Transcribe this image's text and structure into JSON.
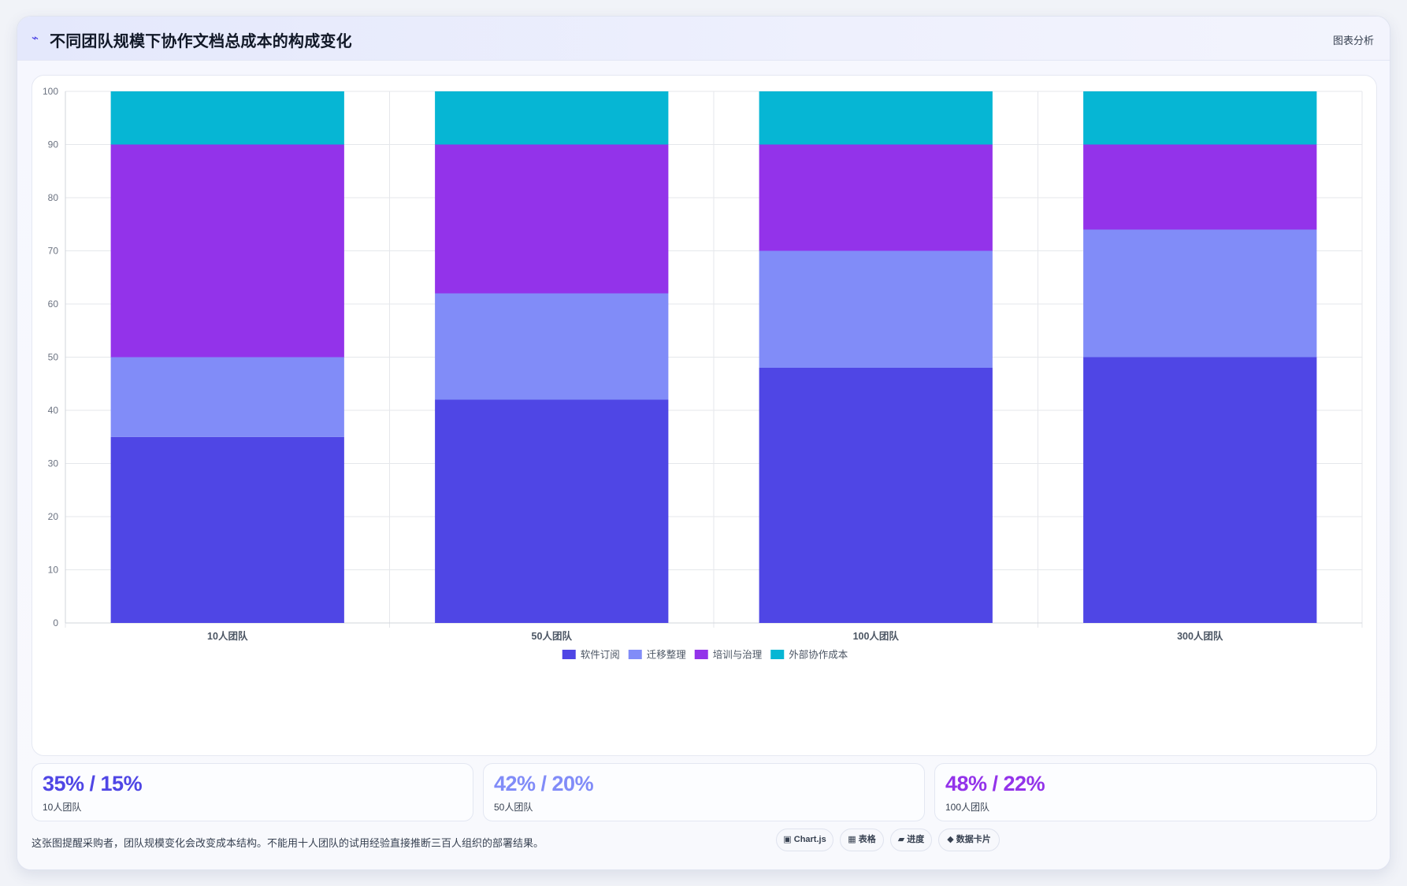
{
  "header": {
    "icon": "wave-icon",
    "icon_glyph": "⌁",
    "title": "不同团队规模下协作文档总成本的构成变化",
    "tag": "图表分析"
  },
  "chart_data": {
    "type": "bar",
    "stacked": true,
    "categories": [
      "10人团队",
      "50人团队",
      "100人团队",
      "300人团队"
    ],
    "series": [
      {
        "name": "软件订阅",
        "color": "#4f46e5",
        "values": [
          35,
          42,
          48,
          50
        ]
      },
      {
        "name": "迁移整理",
        "color": "#818cf8",
        "values": [
          15,
          20,
          22,
          24
        ]
      },
      {
        "name": "培训与治理",
        "color": "#9333ea",
        "values": [
          40,
          28,
          20,
          16
        ]
      },
      {
        "name": "外部协作成本",
        "color": "#06b6d4",
        "values": [
          10,
          10,
          10,
          10
        ]
      }
    ],
    "ylim": [
      0,
      100
    ],
    "yticks": [
      0,
      10,
      20,
      30,
      40,
      50,
      60,
      70,
      80,
      90,
      100
    ],
    "grid": true,
    "legend_position": "bottom"
  },
  "stats": [
    {
      "value": "35% / 15%",
      "label": "10人团队",
      "color": "#4f46e5"
    },
    {
      "value": "42% / 20%",
      "label": "50人团队",
      "color": "#818cf8"
    },
    {
      "value": "48% / 22%",
      "label": "100人团队",
      "color": "#9333ea"
    }
  ],
  "footnote": "这张图提醒采购者，团队规模变化会改变成本结构。不能用十人团队的试用经验直接推断三百人组织的部署结果。",
  "pills": [
    {
      "icon": "▣",
      "label": "Chart.js"
    },
    {
      "icon": "▦",
      "label": "表格"
    },
    {
      "icon": "▰",
      "label": "进度"
    },
    {
      "icon": "◆",
      "label": "数据卡片"
    }
  ]
}
